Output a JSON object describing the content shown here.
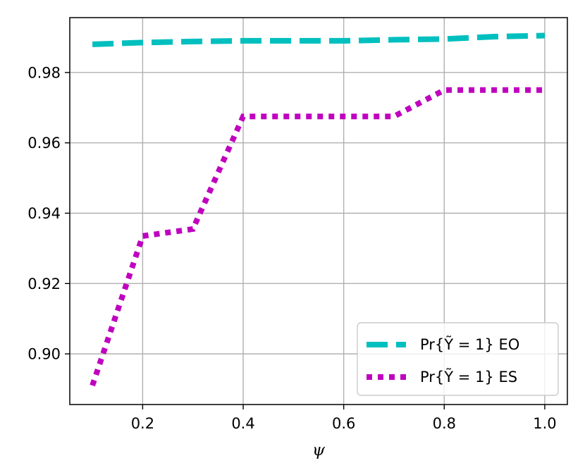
{
  "chart_data": {
    "type": "line",
    "xlabel": "ψ",
    "ylabel": "",
    "title": "",
    "xlim": [
      0.055,
      1.045
    ],
    "ylim": [
      0.8856,
      0.9956
    ],
    "xticks": [
      "0.2",
      "0.4",
      "0.6",
      "0.8",
      "1.0"
    ],
    "xtick_values": [
      0.2,
      0.4,
      0.6,
      0.8,
      1.0
    ],
    "yticks": [
      "0.90",
      "0.92",
      "0.94",
      "0.96",
      "0.98"
    ],
    "ytick_values": [
      0.9,
      0.92,
      0.94,
      0.96,
      0.98
    ],
    "grid": true,
    "legend_position": "lower-right",
    "legend_labels": [
      "Pr{Ỹ = 1} EO",
      "Pr{Ỹ = 1} ES"
    ],
    "series": [
      {
        "name": "Pr{Ỹ = 1} EO",
        "color": "#00bfbf",
        "style": "dashed",
        "x": [
          0.1,
          0.2,
          0.3,
          0.4,
          0.5,
          0.6,
          0.7,
          0.8,
          0.9,
          1.0
        ],
        "y": [
          0.988,
          0.9885,
          0.9888,
          0.989,
          0.989,
          0.989,
          0.9893,
          0.9895,
          0.9902,
          0.9905
        ]
      },
      {
        "name": "Pr{Ỹ = 1} ES",
        "color": "#bf00bf",
        "style": "dotted",
        "x": [
          0.1,
          0.2,
          0.3,
          0.4,
          0.5,
          0.6,
          0.7,
          0.8,
          0.9,
          1.0
        ],
        "y": [
          0.891,
          0.9335,
          0.9355,
          0.9675,
          0.9675,
          0.9675,
          0.9675,
          0.975,
          0.975,
          0.975
        ]
      }
    ]
  }
}
